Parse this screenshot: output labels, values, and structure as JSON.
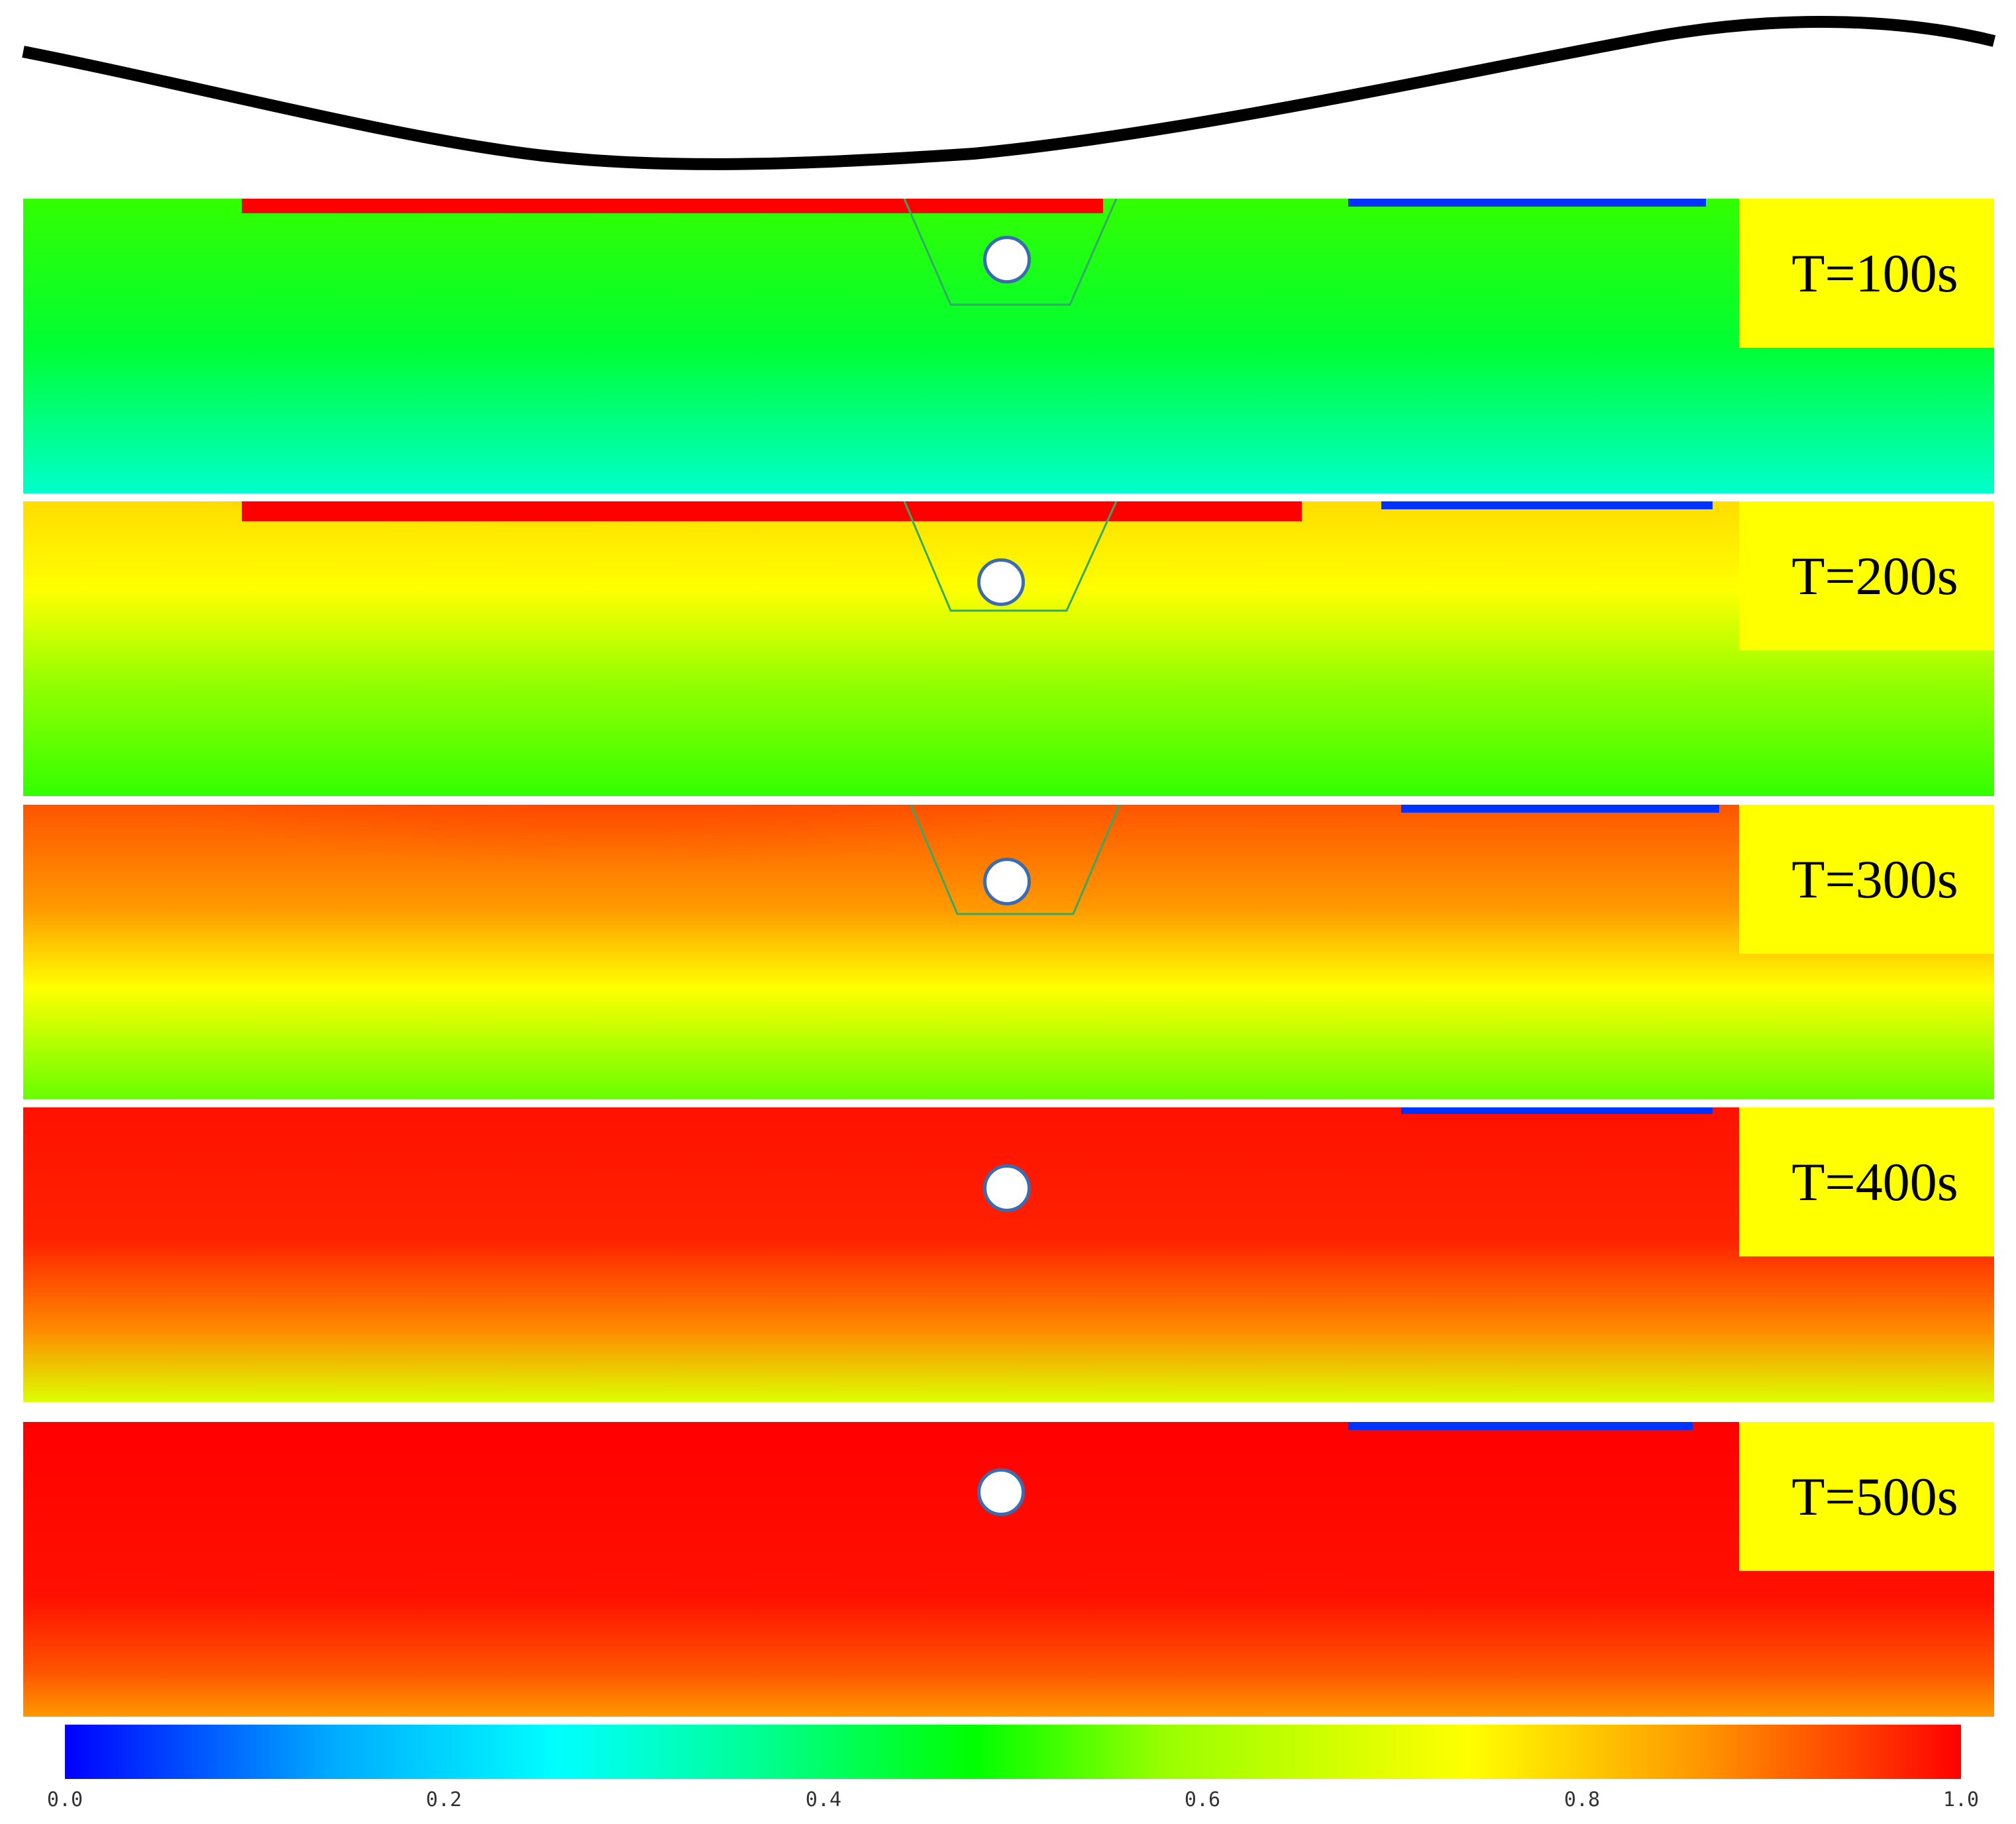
{
  "panels": [
    {
      "label": "T=100s"
    },
    {
      "label": "T=200s"
    },
    {
      "label": "T=300s"
    },
    {
      "label": "T=400s"
    },
    {
      "label": "T=500s"
    }
  ],
  "colorbar": {
    "ticks": [
      "0.0",
      "0.2",
      "0.4",
      "0.6",
      "0.8",
      "1.0"
    ],
    "range": [
      0.0,
      1.0
    ],
    "colors": [
      "#0000ff",
      "#00ffff",
      "#00ff00",
      "#ffff00",
      "#ff0000"
    ]
  },
  "pipe_color": "#3b6bb0"
}
